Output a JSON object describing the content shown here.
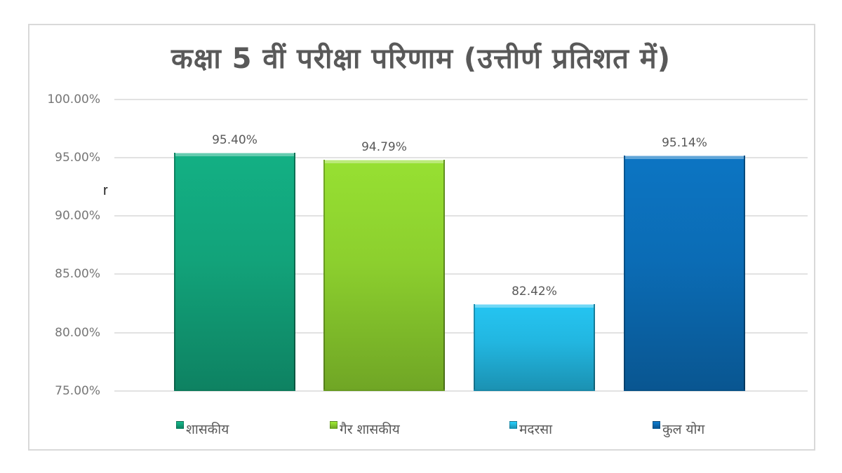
{
  "chart_data": {
    "type": "bar",
    "title": "कक्षा 5 वीं परीक्षा परिणाम (उत्तीर्ण प्रतिशत में)",
    "xlabel": "",
    "ylabel": "",
    "categories": [
      "शासकीय",
      "गैर शासकीय",
      "मदरसा",
      "कुल योग"
    ],
    "values": [
      95.4,
      94.79,
      82.42,
      95.14
    ],
    "value_labels": [
      "95.40%",
      "94.79%",
      "82.42%",
      "95.14%"
    ],
    "ylim": [
      75,
      100
    ],
    "yticks": [
      "100.00%",
      "95.00%",
      "90.00%",
      "85.00%",
      "80.00%",
      "75.00%"
    ],
    "grid": true,
    "legend_position": "bottom",
    "colors": [
      "#12a37a",
      "#8ccf2e",
      "#22b6e0",
      "#0b6cb5"
    ]
  },
  "stray_text": "r"
}
